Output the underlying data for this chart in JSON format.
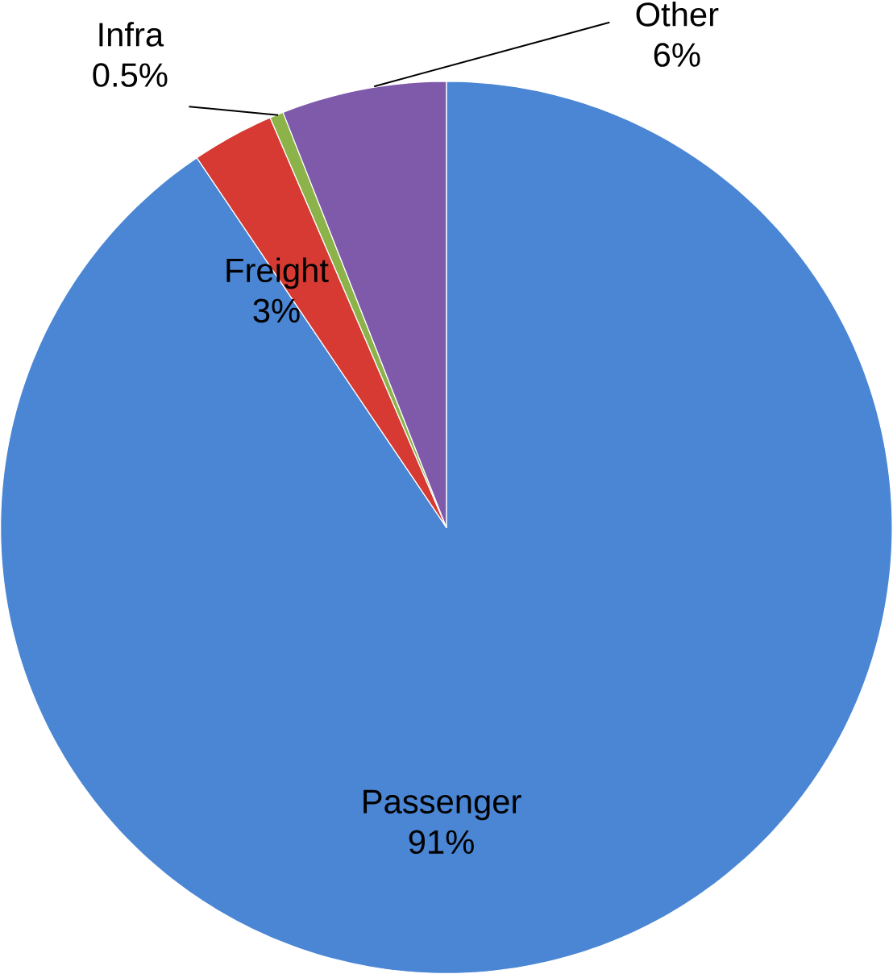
{
  "chart_data": {
    "type": "pie",
    "categories": [
      "Passenger",
      "Freight",
      "Infra",
      "Other"
    ],
    "values": [
      91,
      3,
      0.5,
      6
    ],
    "value_labels": [
      "91%",
      "3%",
      "0.5%",
      "6%"
    ],
    "colors": [
      "#4a86d4",
      "#d63a33",
      "#8cb34a",
      "#7f5aaa"
    ]
  }
}
